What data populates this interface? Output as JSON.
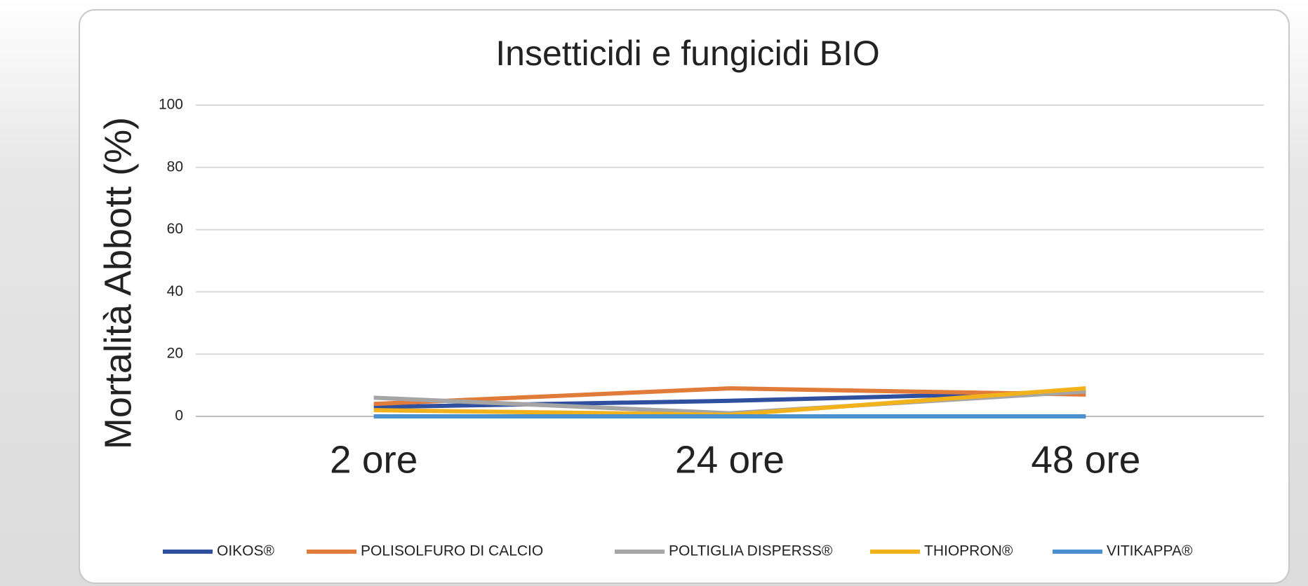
{
  "chart_data": {
    "type": "line",
    "title": "Insetticidi e fungicidi BIO",
    "y_label": "Mortalità Abbott (%)",
    "categories": [
      "2 ore",
      "24 ore",
      "48 ore"
    ],
    "series": [
      {
        "name": "OIKOS®",
        "color": "#2f4f9f",
        "values": [
          3,
          5,
          8
        ]
      },
      {
        "name": "POLISOLFURO DI CALCIO",
        "color": "#e07b39",
        "values": [
          4,
          9,
          7
        ]
      },
      {
        "name": "POLTIGLIA DISPERSS®",
        "color": "#a5a5a5",
        "values": [
          6,
          1,
          8
        ]
      },
      {
        "name": "THIOPRON®",
        "color": "#f2b21c",
        "values": [
          2,
          0.5,
          9
        ]
      },
      {
        "name": "VITIKAPPA®",
        "color": "#4a8fd0",
        "values": [
          0,
          0,
          0
        ]
      }
    ],
    "ylim": [
      0,
      100
    ],
    "yticks": [
      0,
      20,
      40,
      60,
      80,
      100
    ],
    "grid": true,
    "legend": "bottom"
  }
}
